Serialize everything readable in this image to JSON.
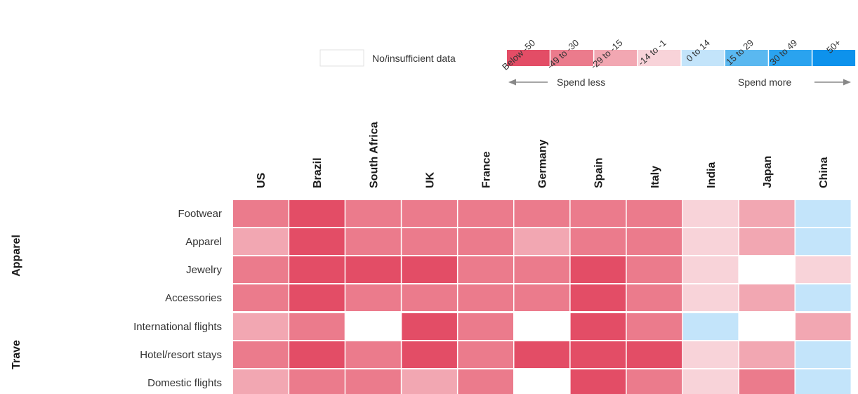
{
  "chart_data": {
    "type": "heatmap",
    "title": "",
    "columns": [
      "US",
      "Brazil",
      "South Africa",
      "UK",
      "France",
      "Germany",
      "Spain",
      "Italy",
      "India",
      "Japan",
      "China"
    ],
    "groups": [
      {
        "name": "Apparel",
        "rows": [
          "Footwear",
          "Apparel",
          "Jewelry",
          "Accessories"
        ]
      },
      {
        "name": "Trave",
        "rows": [
          "International flights",
          "Hotel/resort stays",
          "Domestic flights"
        ]
      }
    ],
    "bins": [
      "Below -50",
      "-49 to -30",
      "-29 to -15",
      "-14 to -1",
      "0 to 14",
      "15 to 29",
      "30 to 49",
      "50+"
    ],
    "bin_colors": [
      "#e34d66",
      "#eb7b8c",
      "#f2a7b2",
      "#f8d3d9",
      "#c3e4fa",
      "#5ab8f0",
      "#2aa3ef",
      "#0d92ec"
    ],
    "missing_label": "No/insufficient data",
    "missing_color": "#ffffff",
    "direction_labels": {
      "less": "Spend less",
      "more": "Spend more"
    },
    "values": [
      [
        1,
        0,
        1,
        1,
        1,
        1,
        1,
        1,
        3,
        2,
        4
      ],
      [
        2,
        0,
        1,
        1,
        1,
        2,
        1,
        1,
        3,
        2,
        4
      ],
      [
        1,
        0,
        0,
        0,
        1,
        1,
        0,
        1,
        3,
        null,
        3
      ],
      [
        1,
        0,
        1,
        1,
        1,
        1,
        0,
        1,
        3,
        2,
        4
      ],
      [
        2,
        1,
        null,
        0,
        1,
        null,
        0,
        1,
        4,
        null,
        2
      ],
      [
        1,
        0,
        1,
        0,
        1,
        0,
        0,
        0,
        3,
        2,
        4
      ],
      [
        2,
        1,
        1,
        2,
        1,
        null,
        0,
        1,
        3,
        1,
        4
      ]
    ]
  }
}
